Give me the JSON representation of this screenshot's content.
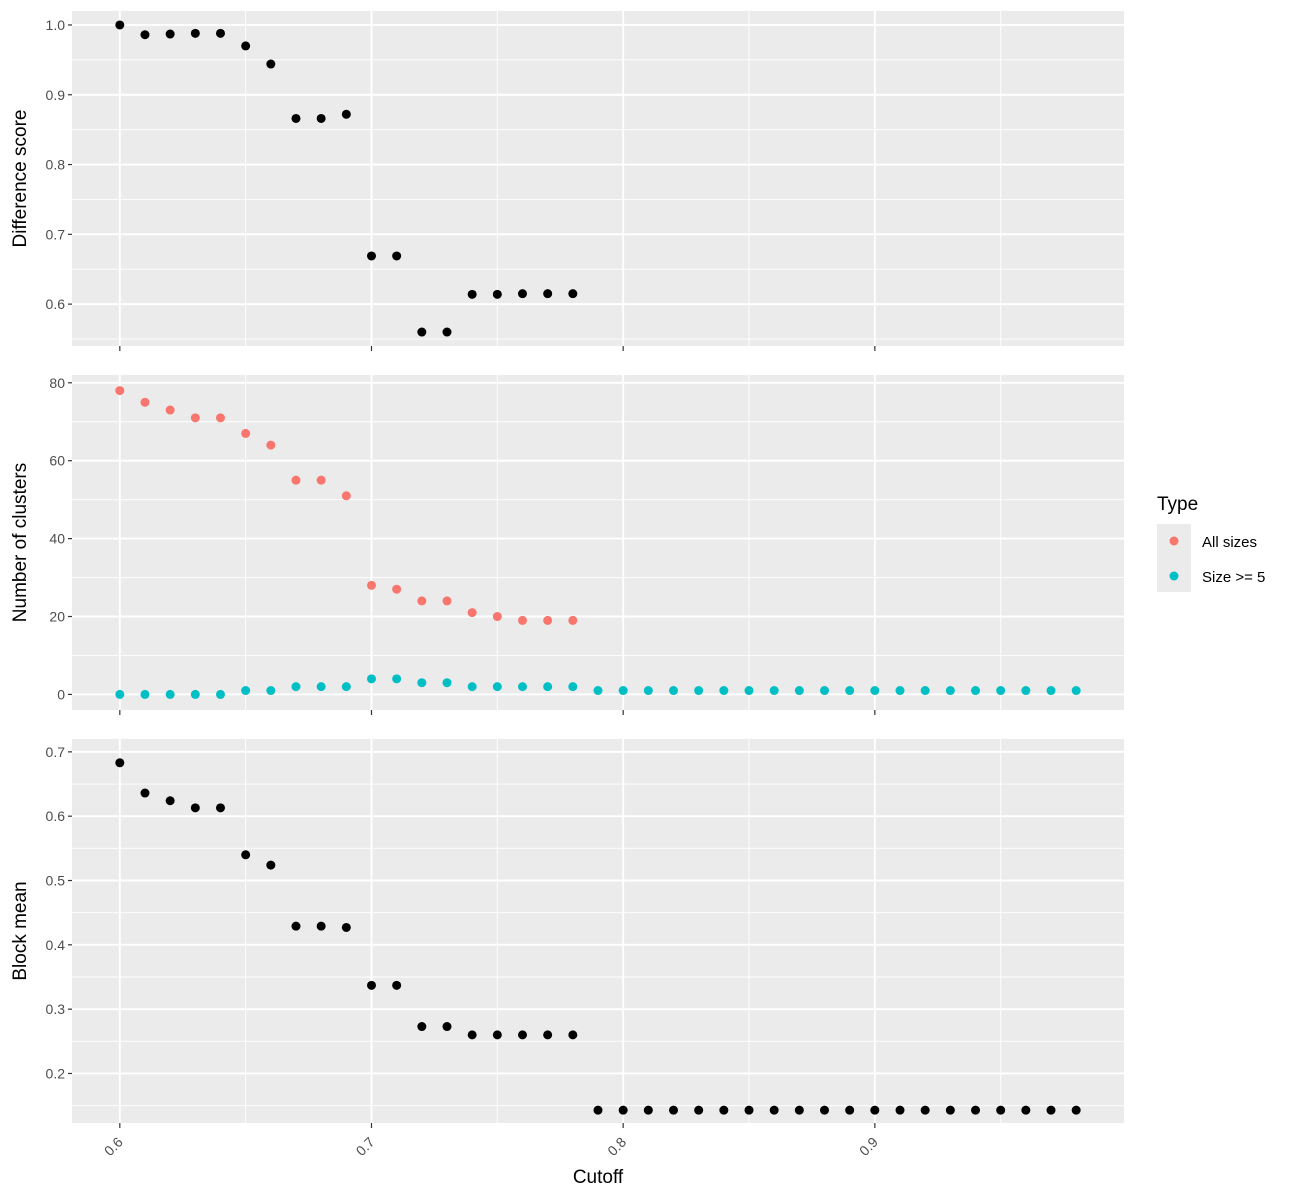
{
  "chart_data": [
    {
      "type": "scatter",
      "panel": "top",
      "ylabel": "Difference score",
      "yticks": [
        0.6,
        0.7,
        0.8,
        0.9,
        1.0
      ],
      "ytick_labels": [
        "0.6",
        "0.7",
        "0.8",
        "0.9",
        "1.0"
      ],
      "ylim": [
        0.54,
        1.02
      ],
      "series": [
        {
          "color": "#000000",
          "x": [
            0.6,
            0.61,
            0.62,
            0.63,
            0.64,
            0.65,
            0.66,
            0.67,
            0.68,
            0.69,
            0.7,
            0.71,
            0.72,
            0.73,
            0.74,
            0.75,
            0.76,
            0.77,
            0.78
          ],
          "y": [
            1.0,
            0.986,
            0.987,
            0.988,
            0.988,
            0.97,
            0.944,
            0.866,
            0.866,
            0.872,
            0.669,
            0.669,
            0.56,
            0.56,
            0.614,
            0.614,
            0.615,
            0.615,
            0.615
          ]
        }
      ]
    },
    {
      "type": "scatter",
      "panel": "middle",
      "ylabel": "Number of clusters",
      "yticks": [
        0,
        20,
        40,
        60,
        80
      ],
      "ytick_labels": [
        "0",
        "20",
        "40",
        "60",
        "80"
      ],
      "ylim": [
        -4,
        82
      ],
      "series": [
        {
          "name": "All sizes",
          "color": "#F8766D",
          "x": [
            0.6,
            0.61,
            0.62,
            0.63,
            0.64,
            0.65,
            0.66,
            0.67,
            0.68,
            0.69,
            0.7,
            0.71,
            0.72,
            0.73,
            0.74,
            0.75,
            0.76,
            0.77,
            0.78
          ],
          "y": [
            78,
            75,
            73,
            71,
            71,
            67,
            64,
            55,
            55,
            51,
            28,
            27,
            24,
            24,
            21,
            20,
            19,
            19,
            19
          ]
        },
        {
          "name": "Size >= 5",
          "color": "#00BFC4",
          "x": [
            0.6,
            0.61,
            0.62,
            0.63,
            0.64,
            0.65,
            0.66,
            0.67,
            0.68,
            0.69,
            0.7,
            0.71,
            0.72,
            0.73,
            0.74,
            0.75,
            0.76,
            0.77,
            0.78,
            0.79,
            0.8,
            0.81,
            0.82,
            0.83,
            0.84,
            0.85,
            0.86,
            0.87,
            0.88,
            0.89,
            0.9,
            0.91,
            0.92,
            0.93,
            0.94,
            0.95,
            0.96,
            0.97,
            0.98
          ],
          "y": [
            0,
            0,
            0,
            0,
            0,
            1,
            1,
            2,
            2,
            2,
            4,
            4,
            3,
            3,
            2,
            2,
            2,
            2,
            2,
            1,
            1,
            1,
            1,
            1,
            1,
            1,
            1,
            1,
            1,
            1,
            1,
            1,
            1,
            1,
            1,
            1,
            1,
            1,
            1
          ]
        }
      ]
    },
    {
      "type": "scatter",
      "panel": "bottom",
      "ylabel": "Block mean",
      "yticks": [
        0.2,
        0.3,
        0.4,
        0.5,
        0.6,
        0.7
      ],
      "ytick_labels": [
        "0.2",
        "0.3",
        "0.4",
        "0.5",
        "0.6",
        "0.7"
      ],
      "ylim": [
        0.123,
        0.72
      ],
      "series": [
        {
          "color": "#000000",
          "x": [
            0.6,
            0.61,
            0.62,
            0.63,
            0.64,
            0.65,
            0.66,
            0.67,
            0.68,
            0.69,
            0.7,
            0.71,
            0.72,
            0.73,
            0.74,
            0.75,
            0.76,
            0.77,
            0.78,
            0.79,
            0.8,
            0.81,
            0.82,
            0.83,
            0.84,
            0.85,
            0.86,
            0.87,
            0.88,
            0.89,
            0.9,
            0.91,
            0.92,
            0.93,
            0.94,
            0.95,
            0.96,
            0.97,
            0.98
          ],
          "y": [
            0.683,
            0.636,
            0.624,
            0.613,
            0.613,
            0.54,
            0.524,
            0.429,
            0.429,
            0.427,
            0.337,
            0.337,
            0.273,
            0.273,
            0.26,
            0.26,
            0.26,
            0.26,
            0.26,
            0.143,
            0.143,
            0.143,
            0.143,
            0.143,
            0.143,
            0.143,
            0.143,
            0.143,
            0.143,
            0.143,
            0.143,
            0.143,
            0.143,
            0.143,
            0.143,
            0.143,
            0.143,
            0.143,
            0.143
          ]
        }
      ]
    }
  ],
  "x_axis": {
    "label": "Cutoff",
    "xlim": [
      0.581,
      0.999
    ],
    "ticks": [
      0.6,
      0.7,
      0.8,
      0.9
    ],
    "tick_labels": [
      "0.6",
      "0.7",
      "0.8",
      "0.9"
    ]
  },
  "legend": {
    "title": "Type",
    "placement": "right",
    "entries": [
      {
        "label": "All sizes",
        "color": "#F8766D"
      },
      {
        "label": "Size >= 5",
        "color": "#00BFC4"
      }
    ]
  },
  "theme": {
    "panel_background": "#EBEBEB",
    "grid_color": "#FFFFFF"
  }
}
